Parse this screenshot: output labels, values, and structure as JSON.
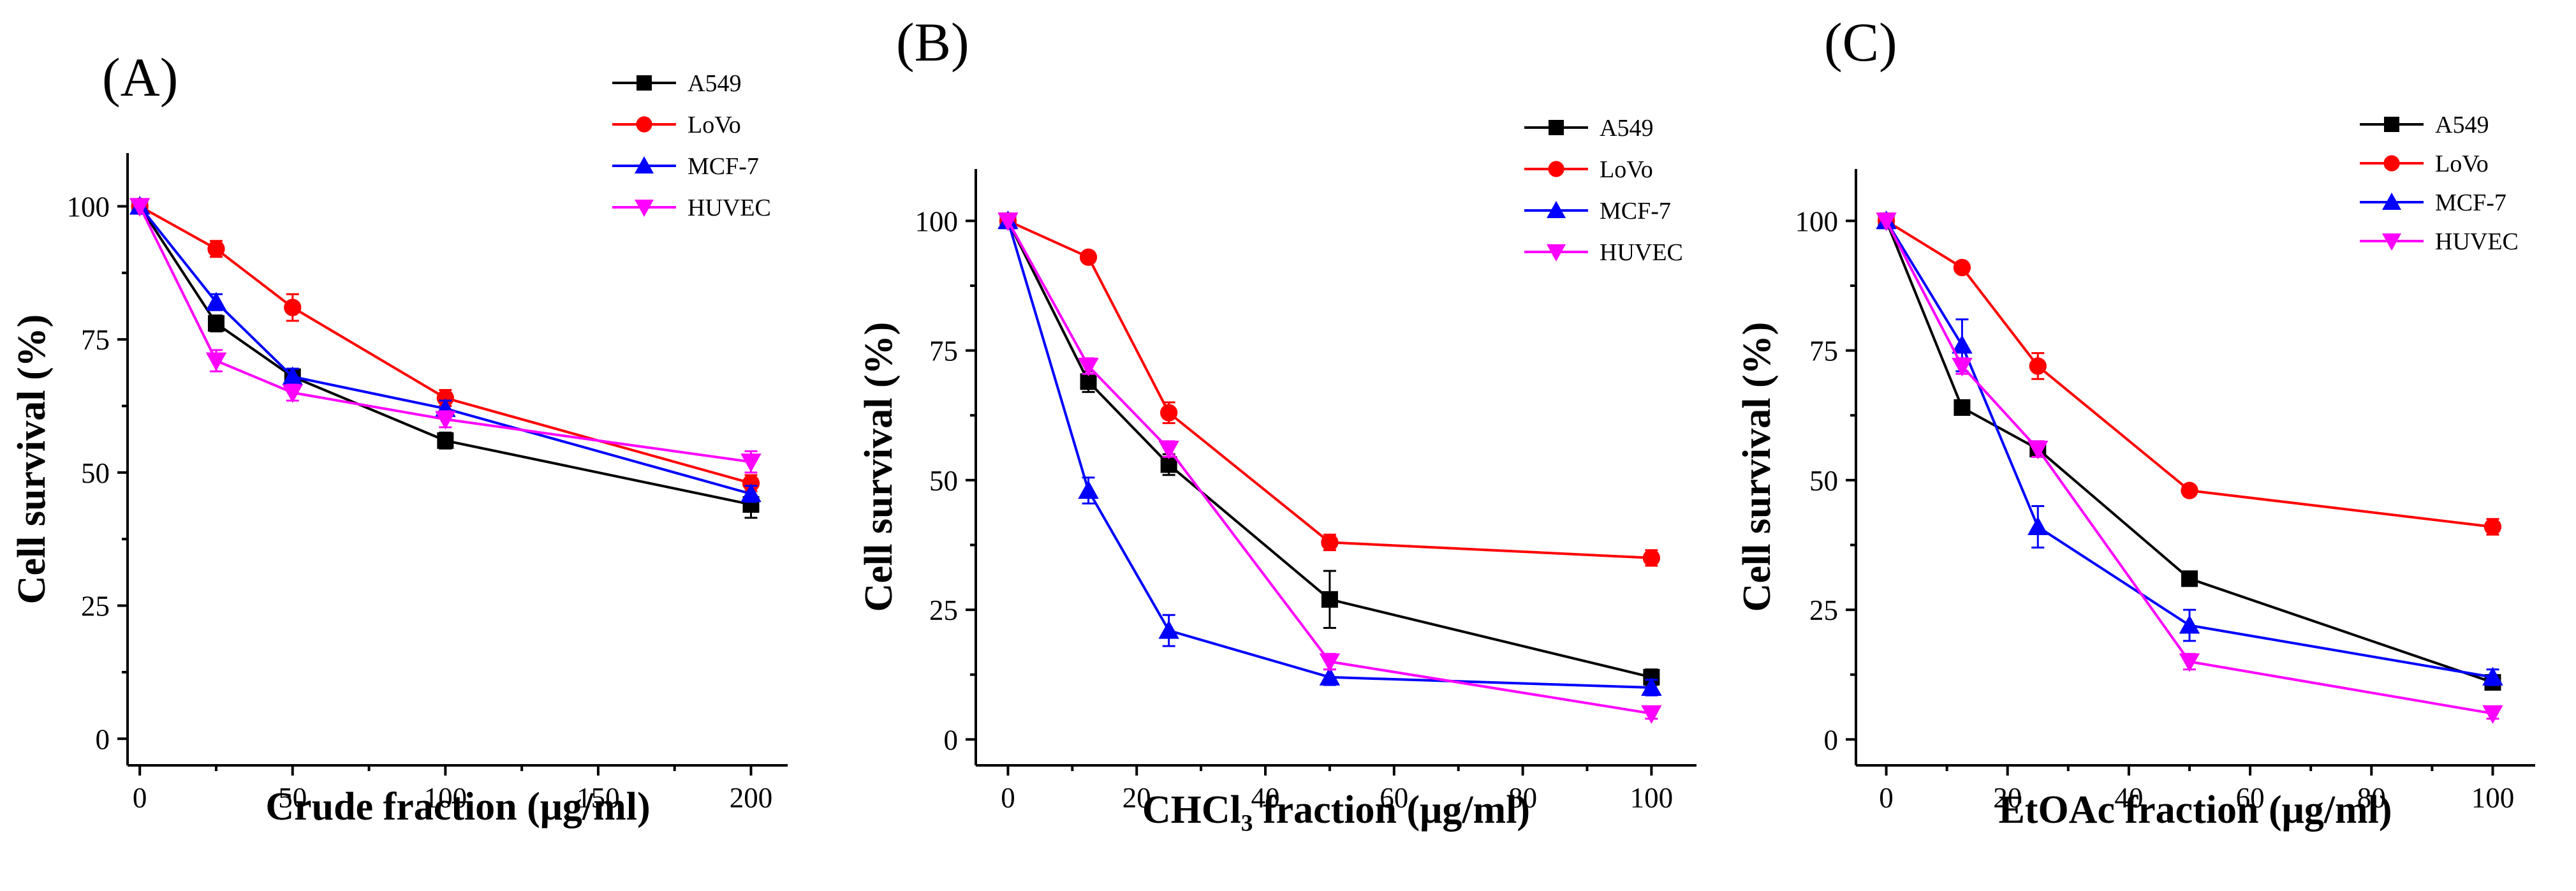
{
  "figure": {
    "panels": [
      "(A)",
      "(B)",
      "(C)"
    ]
  },
  "series_colors": {
    "A549": "#000000",
    "LoVo": "#ff0000",
    "MCF-7": "#0000ff",
    "HUVEC": "#ff00ff"
  },
  "series_markers": {
    "A549": "square",
    "LoVo": "circle",
    "MCF-7": "triangle-up",
    "HUVEC": "triangle-down"
  },
  "chart_data": [
    {
      "type": "line",
      "panel_label": "(A)",
      "title": "",
      "xlabel": "Crude fraction (μg/ml)",
      "ylabel": "Cell survival (%)",
      "x": [
        0,
        25,
        50,
        100,
        200
      ],
      "xlim": [
        -4,
        212
      ],
      "ylim": [
        -5,
        110
      ],
      "xticks": [
        0,
        50,
        100,
        150,
        200
      ],
      "yticks": [
        0,
        25,
        50,
        75,
        100
      ],
      "legend_position": "top-right",
      "series": [
        {
          "name": "A549",
          "values": [
            100,
            78,
            68,
            56,
            44
          ],
          "errors": [
            0,
            1.5,
            1.5,
            1.5,
            2.5
          ]
        },
        {
          "name": "LoVo",
          "values": [
            100,
            92,
            81,
            64,
            48
          ],
          "errors": [
            0,
            1.5,
            2.5,
            1.5,
            1.5
          ]
        },
        {
          "name": "MCF-7",
          "values": [
            100,
            82,
            68,
            62,
            46
          ],
          "errors": [
            0,
            1.5,
            1.5,
            1.5,
            1.5
          ]
        },
        {
          "name": "HUVEC",
          "values": [
            100,
            71,
            65,
            60,
            52
          ],
          "errors": [
            0,
            2.0,
            1.5,
            1.5,
            2.0
          ]
        }
      ]
    },
    {
      "type": "line",
      "panel_label": "(B)",
      "title": "",
      "xlabel": "CHCl₃ fraction (μg/ml)",
      "ylabel": "Cell survival (%)",
      "x": [
        0,
        12.5,
        25,
        50,
        100
      ],
      "xlim": [
        -5,
        107
      ],
      "ylim": [
        -5,
        110
      ],
      "xticks": [
        0,
        20,
        40,
        60,
        80,
        100
      ],
      "yticks": [
        0,
        25,
        50,
        75,
        100
      ],
      "legend_position": "top-right",
      "series": [
        {
          "name": "A549",
          "values": [
            100,
            69,
            53,
            27,
            12
          ],
          "errors": [
            0,
            2.0,
            2.0,
            5.5,
            1.5
          ]
        },
        {
          "name": "LoVo",
          "values": [
            100,
            93,
            63,
            38,
            35
          ],
          "errors": [
            0,
            1.0,
            2.0,
            1.5,
            1.5
          ]
        },
        {
          "name": "MCF-7",
          "values": [
            100,
            48,
            21,
            12,
            10
          ],
          "errors": [
            0,
            2.5,
            3.0,
            1.5,
            1.5
          ]
        },
        {
          "name": "HUVEC",
          "values": [
            100,
            72,
            56,
            15,
            5
          ],
          "errors": [
            0,
            1.5,
            1.5,
            1.5,
            1.0
          ]
        }
      ]
    },
    {
      "type": "line",
      "panel_label": "(C)",
      "title": "",
      "xlabel": "EtOAc fraction (μg/ml)",
      "ylabel": "Cell survival (%)",
      "x": [
        0,
        12.5,
        25,
        50,
        100
      ],
      "xlim": [
        -5,
        107
      ],
      "ylim": [
        -5,
        110
      ],
      "xticks": [
        0,
        20,
        40,
        60,
        80,
        100
      ],
      "yticks": [
        0,
        25,
        50,
        75,
        100
      ],
      "legend_position": "top-right",
      "series": [
        {
          "name": "A549",
          "values": [
            100,
            64,
            56,
            31,
            11
          ],
          "errors": [
            0,
            1.0,
            1.5,
            1.0,
            1.0
          ]
        },
        {
          "name": "LoVo",
          "values": [
            100,
            91,
            72,
            48,
            41
          ],
          "errors": [
            0,
            1.0,
            2.5,
            1.0,
            1.5
          ]
        },
        {
          "name": "MCF-7",
          "values": [
            100,
            76,
            41,
            22,
            12
          ],
          "errors": [
            0,
            5.0,
            4.0,
            3.0,
            1.5
          ]
        },
        {
          "name": "HUVEC",
          "values": [
            100,
            72,
            56,
            15,
            5
          ],
          "errors": [
            0,
            1.5,
            1.5,
            1.5,
            1.0
          ]
        }
      ]
    }
  ]
}
